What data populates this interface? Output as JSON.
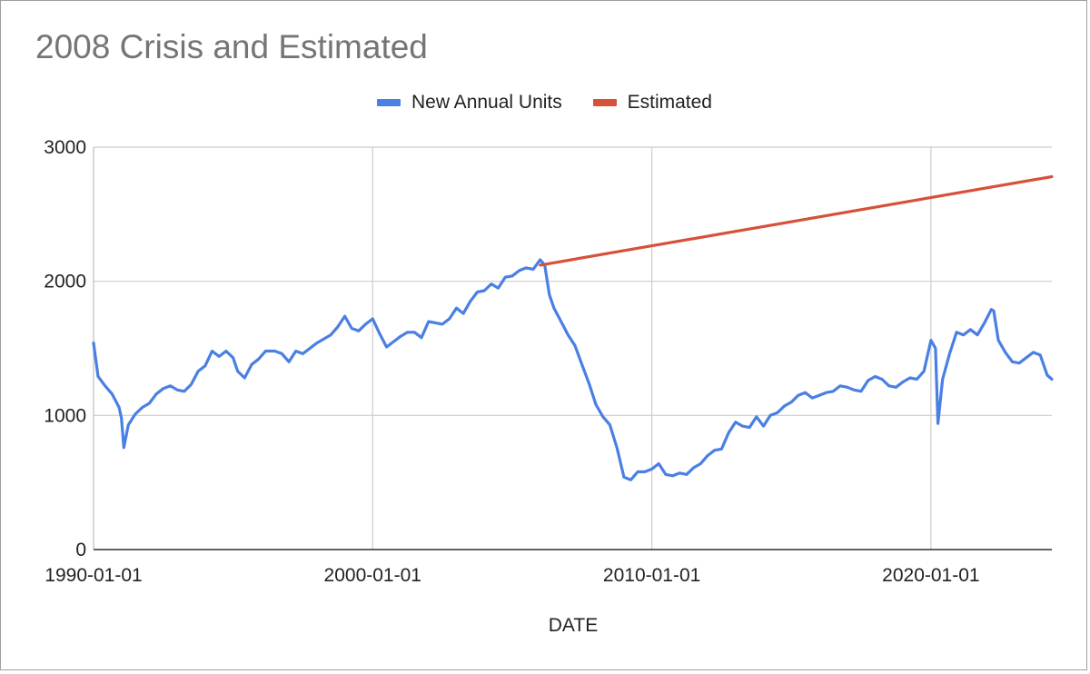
{
  "chart_data": {
    "type": "line",
    "title": "2008 Crisis and Estimated",
    "xlabel": "DATE",
    "ylabel": "",
    "ylim": [
      0,
      3000
    ],
    "xlim": [
      "1990-01-01",
      "2024-05-01"
    ],
    "x_ticks": [
      "1990-01-01",
      "2000-01-01",
      "2010-01-01",
      "2020-01-01"
    ],
    "y_ticks": [
      0,
      1000,
      2000,
      3000
    ],
    "grid": true,
    "legend_position": "top-center",
    "series": [
      {
        "name": "New Annual Units",
        "color": "#4a7fe3",
        "points": [
          [
            "1990-01-01",
            1540
          ],
          [
            "1990-03-01",
            1290
          ],
          [
            "1990-06-01",
            1220
          ],
          [
            "1990-09-01",
            1160
          ],
          [
            "1990-12-01",
            1060
          ],
          [
            "1991-01-01",
            980
          ],
          [
            "1991-02-01",
            760
          ],
          [
            "1991-04-01",
            930
          ],
          [
            "1991-07-01",
            1010
          ],
          [
            "1991-10-01",
            1060
          ],
          [
            "1992-01-01",
            1090
          ],
          [
            "1992-04-01",
            1160
          ],
          [
            "1992-07-01",
            1200
          ],
          [
            "1992-10-01",
            1220
          ],
          [
            "1993-01-01",
            1190
          ],
          [
            "1993-04-01",
            1180
          ],
          [
            "1993-07-01",
            1230
          ],
          [
            "1993-10-01",
            1330
          ],
          [
            "1994-01-01",
            1370
          ],
          [
            "1994-04-01",
            1480
          ],
          [
            "1994-07-01",
            1440
          ],
          [
            "1994-10-01",
            1480
          ],
          [
            "1995-01-01",
            1430
          ],
          [
            "1995-03-01",
            1330
          ],
          [
            "1995-06-01",
            1280
          ],
          [
            "1995-09-01",
            1380
          ],
          [
            "1995-12-01",
            1420
          ],
          [
            "1996-03-01",
            1480
          ],
          [
            "1996-07-01",
            1480
          ],
          [
            "1996-10-01",
            1460
          ],
          [
            "1997-01-01",
            1400
          ],
          [
            "1997-04-01",
            1480
          ],
          [
            "1997-07-01",
            1460
          ],
          [
            "1997-10-01",
            1500
          ],
          [
            "1998-01-01",
            1540
          ],
          [
            "1998-04-01",
            1570
          ],
          [
            "1998-07-01",
            1600
          ],
          [
            "1998-10-01",
            1660
          ],
          [
            "1999-01-01",
            1740
          ],
          [
            "1999-04-01",
            1650
          ],
          [
            "1999-07-01",
            1630
          ],
          [
            "1999-10-01",
            1680
          ],
          [
            "2000-01-01",
            1720
          ],
          [
            "2000-04-01",
            1610
          ],
          [
            "2000-07-01",
            1510
          ],
          [
            "2000-10-01",
            1550
          ],
          [
            "2001-01-01",
            1590
          ],
          [
            "2001-04-01",
            1620
          ],
          [
            "2001-07-01",
            1620
          ],
          [
            "2001-10-01",
            1580
          ],
          [
            "2002-01-01",
            1700
          ],
          [
            "2002-04-01",
            1690
          ],
          [
            "2002-07-01",
            1680
          ],
          [
            "2002-10-01",
            1720
          ],
          [
            "2003-01-01",
            1800
          ],
          [
            "2003-04-01",
            1760
          ],
          [
            "2003-07-01",
            1850
          ],
          [
            "2003-10-01",
            1920
          ],
          [
            "2004-01-01",
            1930
          ],
          [
            "2004-04-01",
            1980
          ],
          [
            "2004-07-01",
            1950
          ],
          [
            "2004-10-01",
            2030
          ],
          [
            "2005-01-01",
            2040
          ],
          [
            "2005-04-01",
            2080
          ],
          [
            "2005-07-01",
            2100
          ],
          [
            "2005-10-01",
            2090
          ],
          [
            "2006-01-01",
            2160
          ],
          [
            "2006-03-01",
            2120
          ],
          [
            "2006-05-01",
            1900
          ],
          [
            "2006-07-01",
            1800
          ],
          [
            "2006-10-01",
            1700
          ],
          [
            "2007-01-01",
            1600
          ],
          [
            "2007-04-01",
            1520
          ],
          [
            "2007-07-01",
            1380
          ],
          [
            "2007-10-01",
            1240
          ],
          [
            "2008-01-01",
            1080
          ],
          [
            "2008-04-01",
            990
          ],
          [
            "2008-07-01",
            930
          ],
          [
            "2008-10-01",
            760
          ],
          [
            "2009-01-01",
            540
          ],
          [
            "2009-04-01",
            520
          ],
          [
            "2009-07-01",
            580
          ],
          [
            "2009-10-01",
            580
          ],
          [
            "2010-01-01",
            600
          ],
          [
            "2010-04-01",
            640
          ],
          [
            "2010-07-01",
            560
          ],
          [
            "2010-10-01",
            550
          ],
          [
            "2011-01-01",
            570
          ],
          [
            "2011-04-01",
            560
          ],
          [
            "2011-07-01",
            610
          ],
          [
            "2011-10-01",
            640
          ],
          [
            "2012-01-01",
            700
          ],
          [
            "2012-04-01",
            740
          ],
          [
            "2012-07-01",
            750
          ],
          [
            "2012-10-01",
            870
          ],
          [
            "2013-01-01",
            950
          ],
          [
            "2013-04-01",
            920
          ],
          [
            "2013-07-01",
            910
          ],
          [
            "2013-10-01",
            990
          ],
          [
            "2014-01-01",
            920
          ],
          [
            "2014-04-01",
            1000
          ],
          [
            "2014-07-01",
            1020
          ],
          [
            "2014-10-01",
            1070
          ],
          [
            "2015-01-01",
            1100
          ],
          [
            "2015-04-01",
            1150
          ],
          [
            "2015-07-01",
            1170
          ],
          [
            "2015-10-01",
            1130
          ],
          [
            "2016-01-01",
            1150
          ],
          [
            "2016-04-01",
            1170
          ],
          [
            "2016-07-01",
            1180
          ],
          [
            "2016-10-01",
            1220
          ],
          [
            "2017-01-01",
            1210
          ],
          [
            "2017-04-01",
            1190
          ],
          [
            "2017-07-01",
            1180
          ],
          [
            "2017-10-01",
            1260
          ],
          [
            "2018-01-01",
            1290
          ],
          [
            "2018-04-01",
            1270
          ],
          [
            "2018-07-01",
            1220
          ],
          [
            "2018-10-01",
            1210
          ],
          [
            "2019-01-01",
            1250
          ],
          [
            "2019-04-01",
            1280
          ],
          [
            "2019-07-01",
            1270
          ],
          [
            "2019-10-01",
            1330
          ],
          [
            "2020-01-01",
            1560
          ],
          [
            "2020-03-01",
            1500
          ],
          [
            "2020-04-01",
            940
          ],
          [
            "2020-06-01",
            1270
          ],
          [
            "2020-09-01",
            1460
          ],
          [
            "2020-12-01",
            1620
          ],
          [
            "2021-03-01",
            1600
          ],
          [
            "2021-06-01",
            1640
          ],
          [
            "2021-09-01",
            1600
          ],
          [
            "2021-12-01",
            1690
          ],
          [
            "2022-03-01",
            1790
          ],
          [
            "2022-04-01",
            1780
          ],
          [
            "2022-06-01",
            1560
          ],
          [
            "2022-09-01",
            1470
          ],
          [
            "2022-12-01",
            1400
          ],
          [
            "2023-03-01",
            1390
          ],
          [
            "2023-06-01",
            1430
          ],
          [
            "2023-09-01",
            1470
          ],
          [
            "2023-12-01",
            1450
          ],
          [
            "2024-03-01",
            1300
          ],
          [
            "2024-05-01",
            1270
          ]
        ]
      },
      {
        "name": "Estimated",
        "color": "#d7503a",
        "points": [
          [
            "2006-01-01",
            2120
          ],
          [
            "2024-05-01",
            2780
          ]
        ]
      }
    ]
  }
}
